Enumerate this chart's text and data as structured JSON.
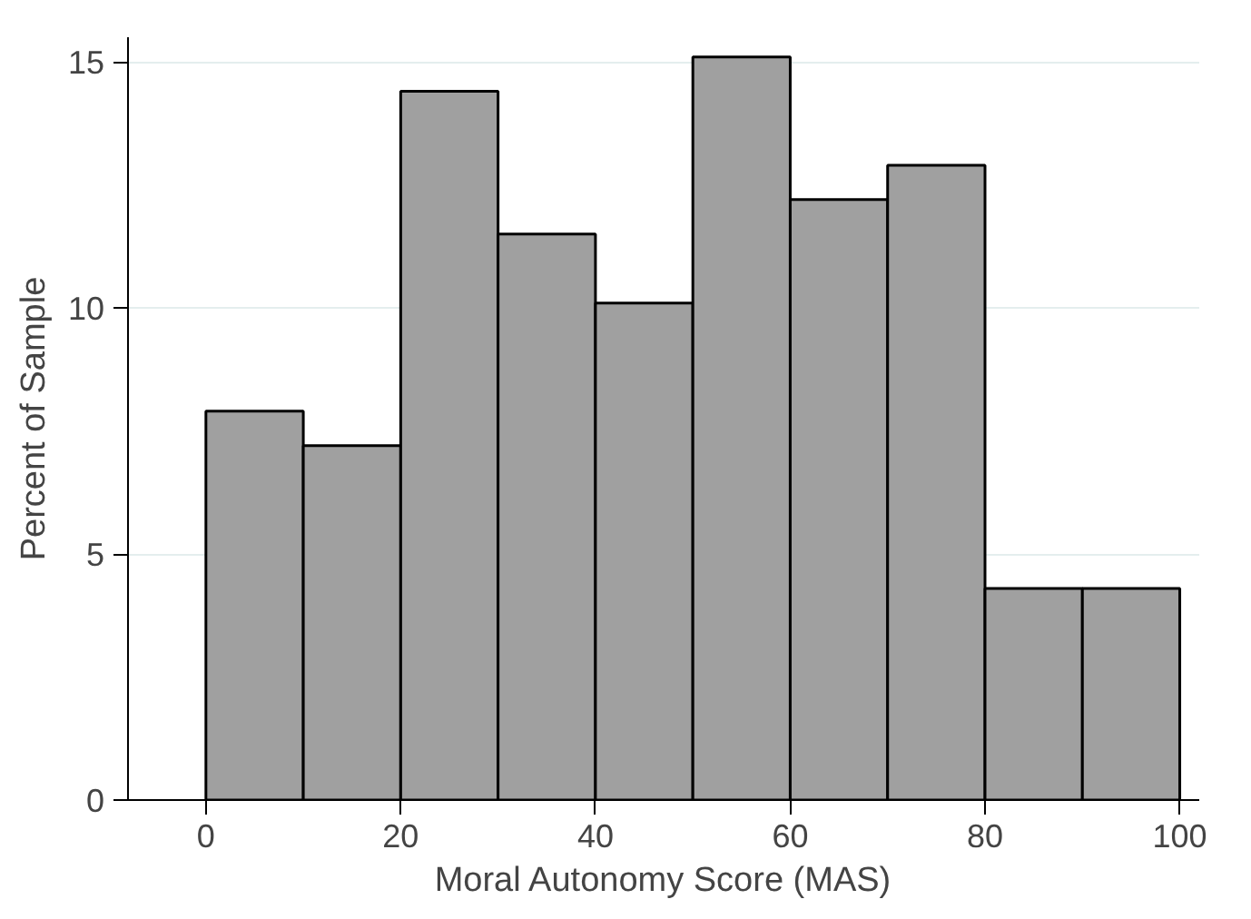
{
  "chart_data": {
    "type": "histogram",
    "xlabel": "Moral Autonomy Score (MAS)",
    "ylabel": "Percent of Sample",
    "bins": [
      0,
      10,
      20,
      30,
      40,
      50,
      60,
      70,
      80,
      90,
      100
    ],
    "values": [
      7.9,
      7.2,
      14.4,
      11.5,
      10.1,
      15.1,
      12.2,
      12.9,
      4.3,
      4.3
    ],
    "color": "#a0a0a0",
    "xlim": [
      -8,
      102
    ],
    "ylim": [
      0,
      15.5
    ],
    "xticks": [
      0,
      20,
      40,
      60,
      80,
      100
    ],
    "yticks": [
      0,
      5,
      10,
      15
    ],
    "grid": "y"
  }
}
